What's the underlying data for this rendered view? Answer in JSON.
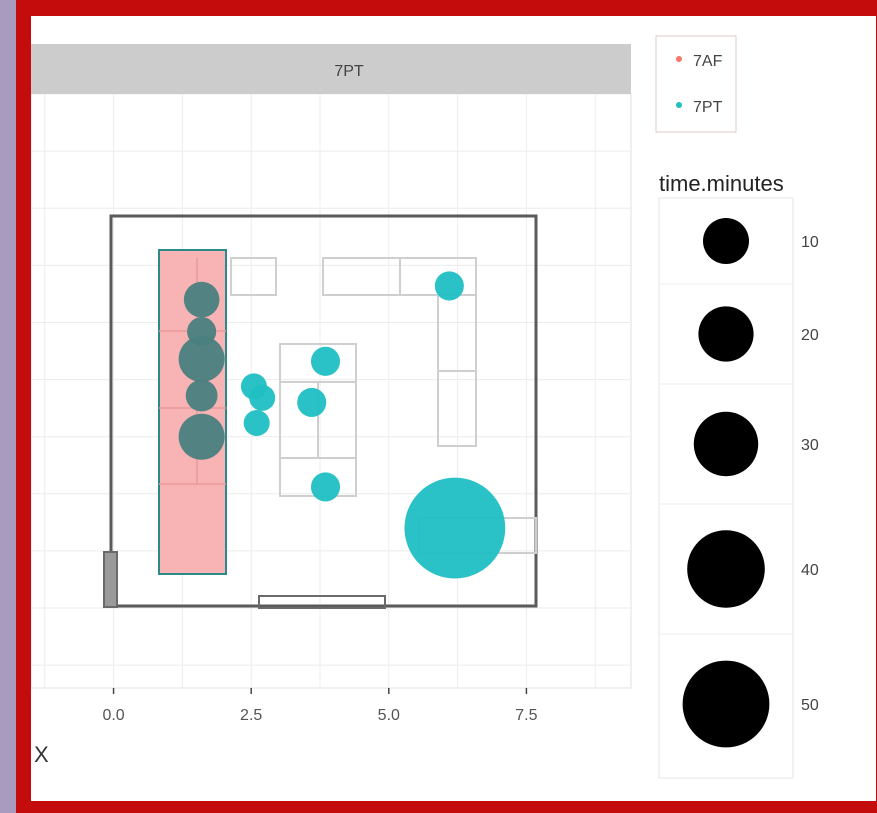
{
  "chart_data": {
    "type": "scatter",
    "facet_label": "7PT",
    "xlabel": "X",
    "x_ticks": [
      0.0,
      2.5,
      5.0,
      7.5
    ],
    "x_tick_labels": [
      "0.0",
      "2.5",
      "5.0",
      "7.5"
    ],
    "xlim": [
      -1.5,
      9.4
    ],
    "ylim": [
      -2.5,
      10.5
    ],
    "grid": true,
    "series": [
      {
        "name": "7AF",
        "color": "#f8766d",
        "points": []
      },
      {
        "name": "7PT",
        "color": "#1fbfc3",
        "points": [
          {
            "x": 1.6,
            "y": 6.0,
            "time_minutes": 15
          },
          {
            "x": 1.6,
            "y": 5.3,
            "time_minutes": 10
          },
          {
            "x": 1.6,
            "y": 4.7,
            "time_minutes": 25
          },
          {
            "x": 1.6,
            "y": 3.9,
            "time_minutes": 12
          },
          {
            "x": 1.6,
            "y": 3.0,
            "time_minutes": 25
          },
          {
            "x": 2.55,
            "y": 4.1,
            "time_minutes": 8
          },
          {
            "x": 2.7,
            "y": 3.85,
            "time_minutes": 8
          },
          {
            "x": 2.6,
            "y": 3.3,
            "time_minutes": 8
          },
          {
            "x": 3.85,
            "y": 4.65,
            "time_minutes": 10
          },
          {
            "x": 3.6,
            "y": 3.75,
            "time_minutes": 10
          },
          {
            "x": 3.85,
            "y": 1.9,
            "time_minutes": 10
          },
          {
            "x": 6.1,
            "y": 6.3,
            "time_minutes": 10
          },
          {
            "x": 6.2,
            "y": 1.0,
            "time_minutes": 120
          }
        ]
      }
    ],
    "legend": {
      "position": "right",
      "color_entries": [
        "7AF",
        "7PT"
      ],
      "size_title": "time.minutes",
      "size_entries": [
        {
          "label": "10",
          "value": 10
        },
        {
          "label": "20",
          "value": 20
        },
        {
          "label": "30",
          "value": 30
        },
        {
          "label": "40",
          "value": 40
        },
        {
          "label": "50",
          "value": 50
        }
      ]
    }
  }
}
